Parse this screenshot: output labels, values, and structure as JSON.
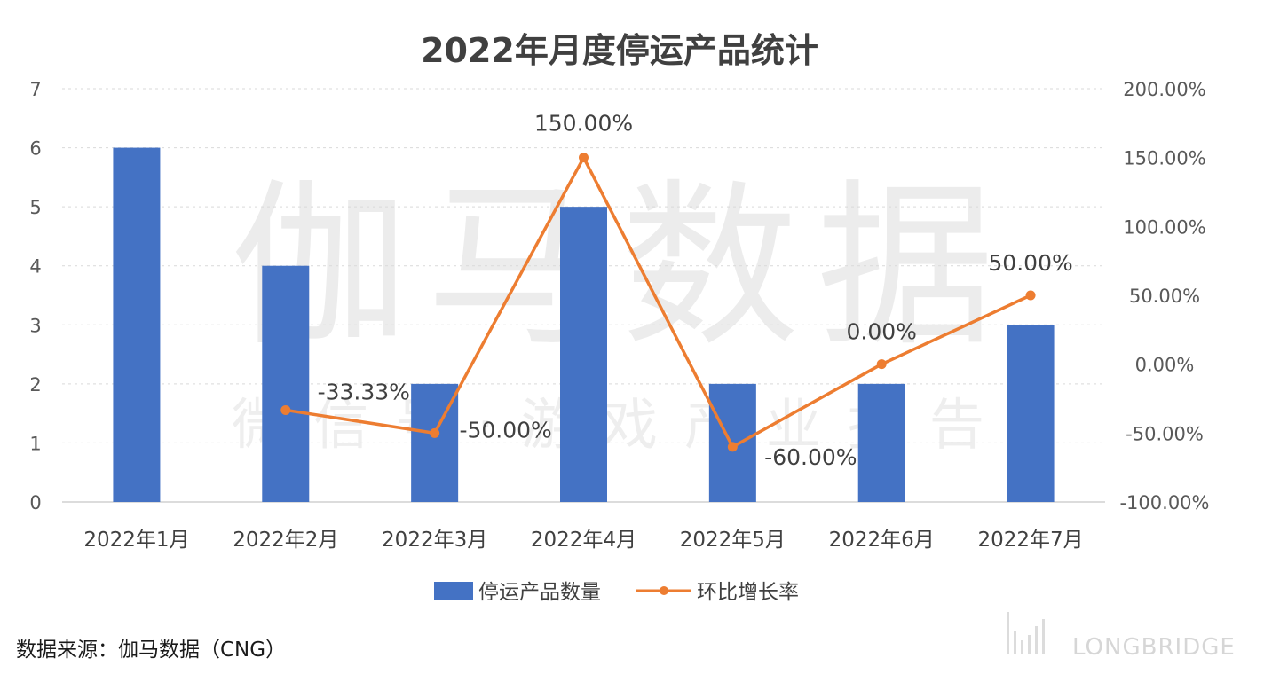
{
  "chart_data": {
    "type": "bar",
    "title": "2022年月度停运产品统计",
    "categories": [
      "2022年1月",
      "2022年2月",
      "2022年3月",
      "2022年4月",
      "2022年5月",
      "2022年6月",
      "2022年7月"
    ],
    "series": [
      {
        "name": "停运产品数量",
        "type": "bar",
        "axis": "left",
        "color": "#4472c4",
        "values": [
          6,
          4,
          2,
          5,
          2,
          2,
          3
        ]
      },
      {
        "name": "环比增长率",
        "type": "line",
        "axis": "right",
        "color": "#ed7d31",
        "values": [
          null,
          -33.33,
          -50,
          150,
          -60,
          0,
          50
        ],
        "labels": [
          "",
          "-33.33%",
          "-50.00%",
          "150.00%",
          "-60.00%",
          "0.00%",
          "50.00%"
        ]
      }
    ],
    "y_left": {
      "min": 0,
      "max": 7,
      "ticks": [
        "0",
        "1",
        "2",
        "3",
        "4",
        "5",
        "6",
        "7"
      ]
    },
    "y_right": {
      "min": -100,
      "max": 200,
      "ticks": [
        "-100.00%",
        "-50.00%",
        "0.00%",
        "50.00%",
        "100.00%",
        "150.00%",
        "200.00%"
      ]
    },
    "grid": true,
    "legend": "bottom"
  },
  "watermark": {
    "main": "伽马数据",
    "sub": "微信号·游戏产业报告"
  },
  "source_text": "数据来源：伽马数据（CNG）",
  "brand_text": "LONGBRIDGE",
  "colors": {
    "grid": "#d9d9d9",
    "axis": "#d0d0d0"
  }
}
